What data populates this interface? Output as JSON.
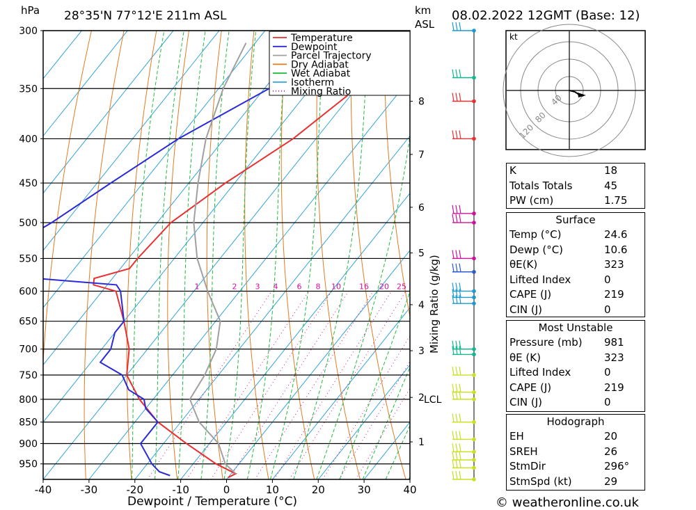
{
  "header": {
    "hpa_label": "hPa",
    "location": "28°35'N  77°12'E  211m  ASL",
    "km_label": "km",
    "asl_label": "ASL",
    "datetime": "08.02.2022  12GMT  (Base: 12)"
  },
  "footer": {
    "copyright": "© weatheronline.co.uk"
  },
  "chart_data": {
    "type": "line",
    "xlabel": "Dewpoint / Temperature (°C)",
    "ylabel": "hPa",
    "x_ticks": [
      -40,
      -30,
      -20,
      -10,
      0,
      10,
      20,
      30,
      40
    ],
    "pressure_levels": [
      300,
      350,
      400,
      450,
      500,
      550,
      600,
      650,
      700,
      750,
      800,
      850,
      900,
      950
    ],
    "km_ticks": [
      {
        "label": "8",
        "p": 362
      },
      {
        "label": "7",
        "p": 417
      },
      {
        "label": "6",
        "p": 480
      },
      {
        "label": "5",
        "p": 542
      },
      {
        "label": "4",
        "p": 622
      },
      {
        "label": "3",
        "p": 703
      },
      {
        "label": "2",
        "p": 796
      },
      {
        "label": "1",
        "p": 896
      }
    ],
    "lcl_label": "LCL",
    "lcl_pressure": 800,
    "mixing_ratio_label": "Mixing Ratio (g/kg)",
    "mixing_ratio_values": [
      "1",
      "2",
      "3",
      "4",
      "6",
      "8",
      "10",
      "16",
      "20",
      "25"
    ],
    "legend": [
      "Temperature",
      "Dewpoint",
      "Parcel Trajectory",
      "Dry Adiabat",
      "Wet Adiabat",
      "Isotherm",
      "Mixing Ratio"
    ],
    "series": [
      {
        "name": "Temperature",
        "color": "#e83030",
        "points": [
          [
            300,
            -33
          ],
          [
            350,
            -40
          ],
          [
            400,
            -45
          ],
          [
            450,
            -52
          ],
          [
            500,
            -57
          ],
          [
            550,
            -58
          ],
          [
            565,
            -58
          ],
          [
            580,
            -64
          ],
          [
            590,
            -63
          ],
          [
            600,
            -57
          ],
          [
            650,
            -50
          ],
          [
            700,
            -44
          ],
          [
            750,
            -40
          ],
          [
            800,
            -33
          ],
          [
            850,
            -25
          ],
          [
            900,
            -15
          ],
          [
            950,
            -5
          ],
          [
            975,
            1
          ],
          [
            985,
            0
          ]
        ]
      },
      {
        "name": "Dewpoint",
        "color": "#2a2ad8",
        "points": [
          [
            300,
            -48
          ],
          [
            330,
            -58
          ],
          [
            350,
            -59
          ],
          [
            400,
            -70
          ],
          [
            450,
            -77
          ],
          [
            500,
            -83
          ],
          [
            550,
            -90
          ],
          [
            570,
            -95
          ],
          [
            590,
            -58
          ],
          [
            600,
            -56
          ],
          [
            650,
            -50
          ],
          [
            670,
            -50
          ],
          [
            700,
            -48
          ],
          [
            725,
            -48
          ],
          [
            750,
            -41
          ],
          [
            780,
            -37
          ],
          [
            800,
            -32
          ],
          [
            820,
            -30
          ],
          [
            850,
            -25
          ],
          [
            900,
            -25
          ],
          [
            950,
            -19
          ],
          [
            970,
            -16
          ],
          [
            980,
            -13
          ]
        ]
      },
      {
        "name": "Parcel Trajectory",
        "color": "#a0a0a0",
        "points": [
          [
            310,
            -72
          ],
          [
            350,
            -69
          ],
          [
            400,
            -64
          ],
          [
            450,
            -58
          ],
          [
            500,
            -52
          ],
          [
            550,
            -45
          ],
          [
            600,
            -37
          ],
          [
            650,
            -29
          ],
          [
            700,
            -25
          ],
          [
            750,
            -23
          ],
          [
            800,
            -22
          ],
          [
            850,
            -16
          ],
          [
            900,
            -8
          ],
          [
            950,
            -3
          ],
          [
            975,
            1
          ]
        ]
      }
    ]
  },
  "wind_barbs": [
    {
      "p": 300,
      "color": "#1a9ad0",
      "barbs": "pennant-like full"
    },
    {
      "p": 340,
      "color": "#10b890"
    },
    {
      "p": 362,
      "color": "#e83030"
    },
    {
      "p": 400,
      "color": "#e83030"
    },
    {
      "p": 488,
      "color": "#d0109a"
    },
    {
      "p": 500,
      "color": "#d0109a"
    },
    {
      "p": 550,
      "color": "#d0109a"
    },
    {
      "p": 570,
      "color": "#2a5ad0"
    },
    {
      "p": 600,
      "color": "#1a9ad0"
    },
    {
      "p": 610,
      "color": "#1a9ad0"
    },
    {
      "p": 620,
      "color": "#1a9ad0"
    },
    {
      "p": 700,
      "color": "#10b890"
    },
    {
      "p": 710,
      "color": "#10b890"
    },
    {
      "p": 750,
      "color": "#c8e020"
    },
    {
      "p": 785,
      "color": "#c8e020"
    },
    {
      "p": 800,
      "color": "#c8e020"
    },
    {
      "p": 850,
      "color": "#c8e020"
    },
    {
      "p": 890,
      "color": "#c8e020"
    },
    {
      "p": 920,
      "color": "#c8e020"
    },
    {
      "p": 940,
      "color": "#c8e020"
    },
    {
      "p": 960,
      "color": "#c8e020"
    },
    {
      "p": 990,
      "color": "#c8e020"
    }
  ],
  "hodograph": {
    "unit_label": "kt",
    "ring_labels": [
      "40",
      "80",
      "120"
    ]
  },
  "indices": {
    "rows": [
      {
        "label": "K",
        "value": "18"
      },
      {
        "label": "Totals Totals",
        "value": "45"
      },
      {
        "label": "PW (cm)",
        "value": "1.75"
      }
    ],
    "surface": {
      "title": "Surface",
      "rows": [
        {
          "label": "Temp (°C)",
          "value": "24.6"
        },
        {
          "label": "Dewp (°C)",
          "value": "10.6"
        },
        {
          "label": "θE(K)",
          "value": "323"
        },
        {
          "label": "Lifted Index",
          "value": "0"
        },
        {
          "label": "CAPE (J)",
          "value": "219"
        },
        {
          "label": "CIN (J)",
          "value": "0"
        }
      ]
    },
    "most_unstable": {
      "title": "Most Unstable",
      "rows": [
        {
          "label": "Pressure (mb)",
          "value": "981"
        },
        {
          "label": "θE (K)",
          "value": "323"
        },
        {
          "label": "Lifted Index",
          "value": "0"
        },
        {
          "label": "CAPE (J)",
          "value": "219"
        },
        {
          "label": "CIN (J)",
          "value": "0"
        }
      ]
    },
    "hodograph_box": {
      "title": "Hodograph",
      "rows": [
        {
          "label": "EH",
          "value": "20"
        },
        {
          "label": "SREH",
          "value": "26"
        },
        {
          "label": "StmDir",
          "value": "296°"
        },
        {
          "label": "StmSpd (kt)",
          "value": "29"
        }
      ]
    }
  }
}
